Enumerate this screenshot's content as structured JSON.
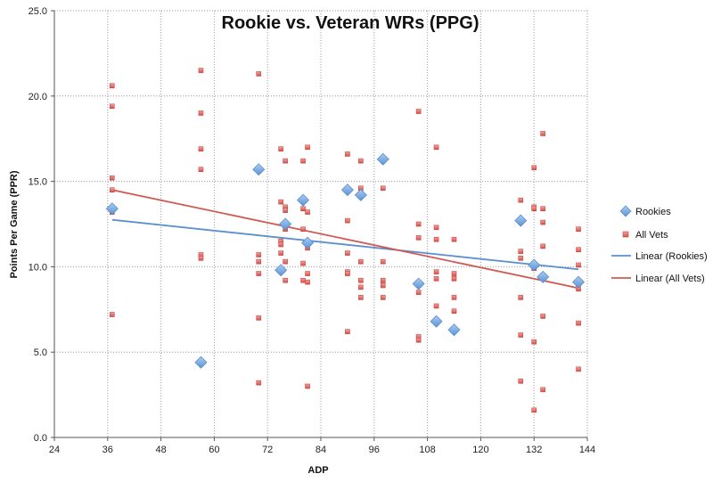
{
  "chart_data": {
    "type": "scatter",
    "title": "Rookie vs. Veteran WRs (PPG)",
    "xlabel": "ADP",
    "ylabel": "Points Per Game (PPR)",
    "xlim": [
      24,
      144
    ],
    "ylim": [
      0,
      25
    ],
    "x_ticks": [
      24,
      36,
      48,
      60,
      72,
      84,
      96,
      108,
      120,
      132,
      144
    ],
    "y_ticks": [
      "0.0",
      "5.0",
      "10.0",
      "15.0",
      "20.0",
      "25.0"
    ],
    "grid": "dotted",
    "legend_position": "right",
    "series": [
      {
        "name": "Rookies",
        "marker": "diamond",
        "color": "#6fa0d8",
        "points": [
          [
            37,
            13.4
          ],
          [
            57,
            4.4
          ],
          [
            70,
            15.7
          ],
          [
            75,
            9.8
          ],
          [
            76,
            12.5
          ],
          [
            80,
            13.9
          ],
          [
            81,
            11.4
          ],
          [
            90,
            14.5
          ],
          [
            93,
            14.2
          ],
          [
            98,
            16.3
          ],
          [
            106,
            9.0
          ],
          [
            110,
            6.8
          ],
          [
            114,
            6.3
          ],
          [
            129,
            12.7
          ],
          [
            132,
            10.1
          ],
          [
            134,
            9.4
          ],
          [
            142,
            9.1
          ]
        ]
      },
      {
        "name": "All Vets",
        "marker": "square",
        "color": "#d9534f",
        "points": [
          [
            37,
            20.6
          ],
          [
            37,
            19.4
          ],
          [
            37,
            15.2
          ],
          [
            37,
            14.5
          ],
          [
            37,
            13.2
          ],
          [
            37,
            7.2
          ],
          [
            57,
            21.5
          ],
          [
            57,
            19.0
          ],
          [
            57,
            16.9
          ],
          [
            57,
            15.7
          ],
          [
            57,
            10.7
          ],
          [
            57,
            10.5
          ],
          [
            70,
            21.3
          ],
          [
            70,
            10.7
          ],
          [
            70,
            10.3
          ],
          [
            70,
            9.6
          ],
          [
            70,
            7.0
          ],
          [
            70,
            3.2
          ],
          [
            75,
            16.9
          ],
          [
            75,
            13.8
          ],
          [
            75,
            11.5
          ],
          [
            75,
            11.3
          ],
          [
            75,
            10.8
          ],
          [
            76,
            16.2
          ],
          [
            76,
            13.5
          ],
          [
            76,
            13.3
          ],
          [
            76,
            12.2
          ],
          [
            76,
            10.3
          ],
          [
            76,
            9.2
          ],
          [
            80,
            16.2
          ],
          [
            80,
            13.4
          ],
          [
            80,
            12.2
          ],
          [
            80,
            10.2
          ],
          [
            80,
            9.2
          ],
          [
            81,
            17.0
          ],
          [
            81,
            13.2
          ],
          [
            81,
            11.1
          ],
          [
            81,
            9.6
          ],
          [
            81,
            9.1
          ],
          [
            81,
            3.0
          ],
          [
            90,
            16.6
          ],
          [
            90,
            12.7
          ],
          [
            90,
            10.8
          ],
          [
            90,
            9.7
          ],
          [
            90,
            9.6
          ],
          [
            90,
            6.2
          ],
          [
            93,
            16.2
          ],
          [
            93,
            14.6
          ],
          [
            93,
            10.3
          ],
          [
            93,
            9.2
          ],
          [
            93,
            8.8
          ],
          [
            93,
            8.2
          ],
          [
            98,
            16.2
          ],
          [
            98,
            14.6
          ],
          [
            98,
            10.3
          ],
          [
            98,
            9.2
          ],
          [
            98,
            8.9
          ],
          [
            98,
            8.2
          ],
          [
            106,
            19.1
          ],
          [
            106,
            12.5
          ],
          [
            106,
            11.7
          ],
          [
            106,
            8.5
          ],
          [
            106,
            5.9
          ],
          [
            106,
            5.7
          ],
          [
            110,
            17.0
          ],
          [
            110,
            12.3
          ],
          [
            110,
            11.6
          ],
          [
            110,
            9.7
          ],
          [
            110,
            9.3
          ],
          [
            110,
            7.7
          ],
          [
            114,
            11.6
          ],
          [
            114,
            9.6
          ],
          [
            114,
            9.3
          ],
          [
            114,
            8.2
          ],
          [
            114,
            7.4
          ],
          [
            129,
            13.9
          ],
          [
            129,
            10.9
          ],
          [
            129,
            10.5
          ],
          [
            129,
            8.2
          ],
          [
            129,
            6.0
          ],
          [
            129,
            3.3
          ],
          [
            132,
            15.8
          ],
          [
            132,
            13.5
          ],
          [
            132,
            13.4
          ],
          [
            132,
            9.9
          ],
          [
            132,
            5.6
          ],
          [
            132,
            1.6
          ],
          [
            134,
            17.8
          ],
          [
            134,
            13.4
          ],
          [
            134,
            12.6
          ],
          [
            134,
            11.2
          ],
          [
            134,
            9.4
          ],
          [
            134,
            7.1
          ],
          [
            134,
            2.8
          ],
          [
            142,
            12.2
          ],
          [
            142,
            11.0
          ],
          [
            142,
            10.1
          ],
          [
            142,
            8.7
          ],
          [
            142,
            6.7
          ],
          [
            142,
            4.0
          ]
        ]
      },
      {
        "name": "Linear (Rookies)",
        "type": "trendline",
        "color": "#5b8fcf",
        "points": [
          [
            37,
            12.75
          ],
          [
            142,
            9.85
          ]
        ]
      },
      {
        "name": "Linear (All Vets)",
        "type": "trendline",
        "color": "#cf5a50",
        "points": [
          [
            37,
            14.5
          ],
          [
            142,
            8.75
          ]
        ]
      }
    ]
  }
}
